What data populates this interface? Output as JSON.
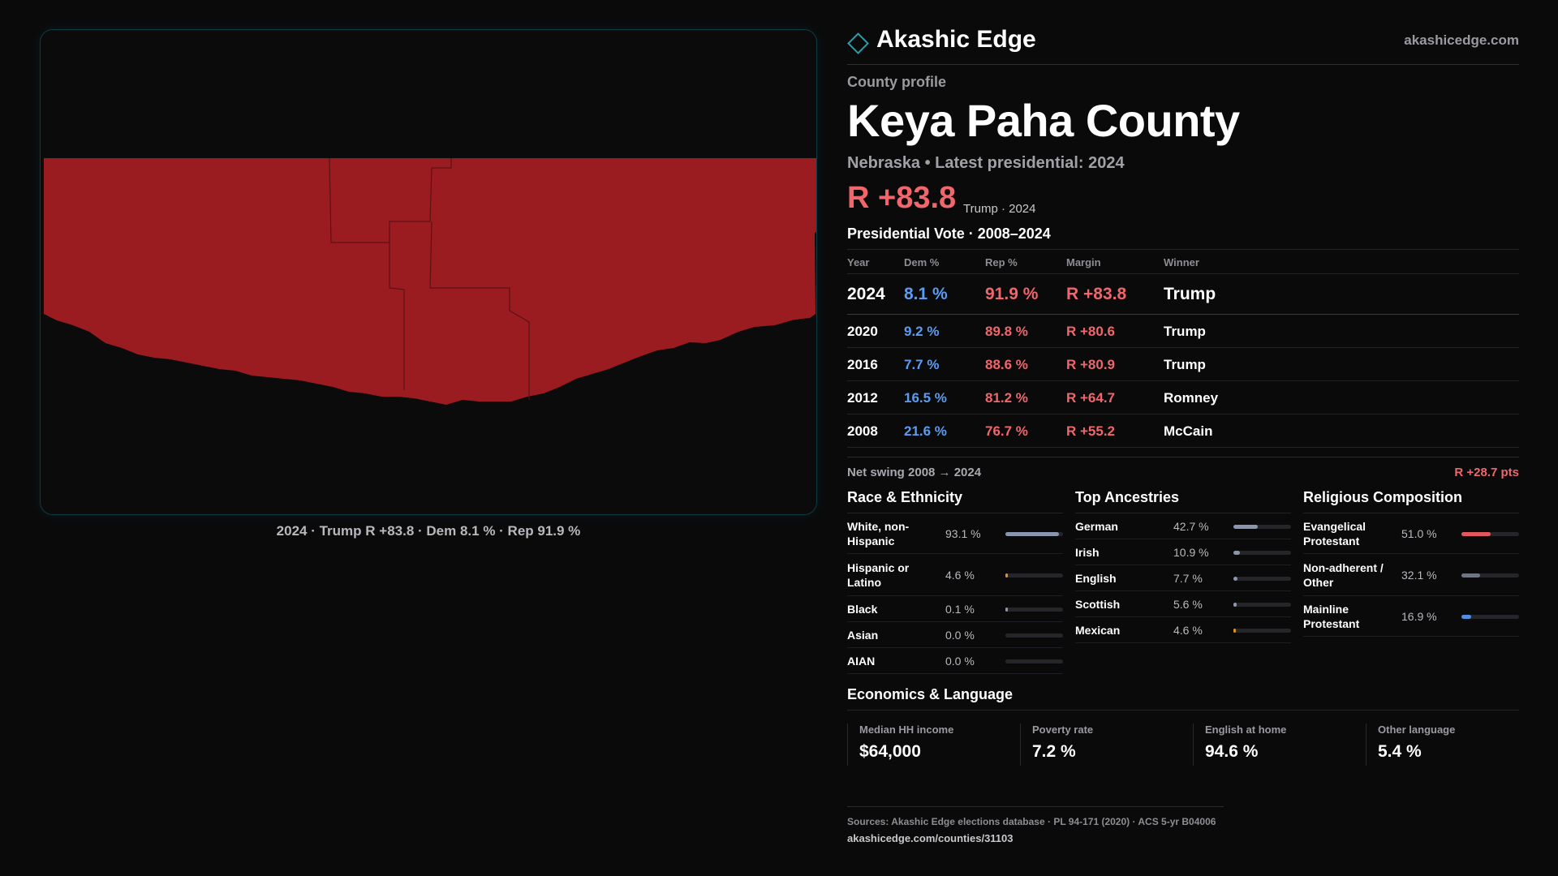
{
  "map": {
    "caption": "2024 · Trump R +83.8 · Dem 8.1 % · Rep 91.9 %",
    "fill_color": "#9b1c20"
  },
  "brand": {
    "name": "Akashic Edge",
    "url": "akashicedge.com",
    "logo_icon": "diamond-logo-icon"
  },
  "profile": {
    "kicker": "County profile",
    "title": "Keya Paha County",
    "subline": "Nebraska • Latest presidential: 2024",
    "headline_margin": "R +83.8",
    "headline_note": "Trump · 2024"
  },
  "presidential": {
    "title": "Presidential Vote · 2008–2024",
    "columns": [
      "Year",
      "Dem %",
      "Rep %",
      "Margin",
      "Winner"
    ],
    "rows": [
      {
        "year": "2024",
        "dem": "8.1 %",
        "rep": "91.9 %",
        "margin": "R +83.8",
        "winner": "Trump"
      },
      {
        "year": "2020",
        "dem": "9.2 %",
        "rep": "89.8 %",
        "margin": "R +80.6",
        "winner": "Trump"
      },
      {
        "year": "2016",
        "dem": "7.7 %",
        "rep": "88.6 %",
        "margin": "R +80.9",
        "winner": "Trump"
      },
      {
        "year": "2012",
        "dem": "16.5 %",
        "rep": "81.2 %",
        "margin": "R +64.7",
        "winner": "Romney"
      },
      {
        "year": "2008",
        "dem": "21.6 %",
        "rep": "76.7 %",
        "margin": "R +55.2",
        "winner": "McCain"
      }
    ],
    "swing_label": "Net swing 2008 → 2024",
    "swing_value": "R +28.7 pts"
  },
  "race": {
    "title": "Race & Ethnicity",
    "rows": [
      {
        "label": "White, non-Hispanic",
        "value": "93.1 %",
        "fraction": 0.931,
        "color": "#8a96ad"
      },
      {
        "label": "Hispanic or Latino",
        "value": "4.6 %",
        "fraction": 0.046,
        "color": "#e0902a"
      },
      {
        "label": "Black",
        "value": "0.1 %",
        "fraction": 0.001,
        "color": "#8a96ad"
      },
      {
        "label": "Asian",
        "value": "0.0 %",
        "fraction": 0.0,
        "color": "#8a96ad"
      },
      {
        "label": "AIAN",
        "value": "0.0 %",
        "fraction": 0.0,
        "color": "#8a96ad"
      }
    ]
  },
  "ancestry": {
    "title": "Top Ancestries",
    "rows": [
      {
        "label": "German",
        "value": "42.7 %",
        "fraction": 0.427,
        "color": "#8a96ad"
      },
      {
        "label": "Irish",
        "value": "10.9 %",
        "fraction": 0.109,
        "color": "#8a96ad"
      },
      {
        "label": "English",
        "value": "7.7 %",
        "fraction": 0.077,
        "color": "#8a96ad"
      },
      {
        "label": "Scottish",
        "value": "5.6 %",
        "fraction": 0.056,
        "color": "#8a96ad"
      },
      {
        "label": "Mexican",
        "value": "4.6 %",
        "fraction": 0.046,
        "color": "#e0902a"
      }
    ]
  },
  "religion": {
    "title": "Religious Composition",
    "rows": [
      {
        "label": "Evangelical Protestant",
        "value": "51.0 %",
        "fraction": 0.51,
        "color": "#e0575d"
      },
      {
        "label": "Non-adherent / Other",
        "value": "32.1 %",
        "fraction": 0.321,
        "color": "#6e7585"
      },
      {
        "label": "Mainline Protestant",
        "value": "16.9 %",
        "fraction": 0.169,
        "color": "#4f8fe0"
      }
    ]
  },
  "economics": {
    "title": "Economics & Language",
    "cells": [
      {
        "label": "Median HH income",
        "value": "$64,000"
      },
      {
        "label": "Poverty rate",
        "value": "7.2 %"
      },
      {
        "label": "English at home",
        "value": "94.6 %"
      },
      {
        "label": "Other language",
        "value": "5.4 %"
      }
    ]
  },
  "footer": {
    "sources": "Sources: Akashic Edge elections database · PL 94-171 (2020) · ACS 5-yr B04006",
    "url": "akashicedge.com/counties/31103"
  }
}
